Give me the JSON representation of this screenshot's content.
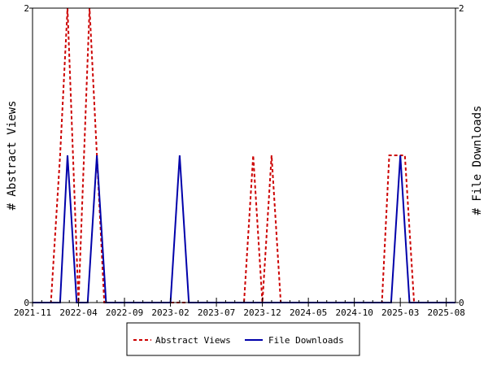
{
  "chart_data": {
    "type": "line",
    "x_tick_labels": [
      "2021-11",
      "2022-04",
      "2022-09",
      "2023-02",
      "2023-07",
      "2023-12",
      "2024-05",
      "2024-10",
      "2025-03",
      "2025-08"
    ],
    "x_tick_months": [
      0,
      5,
      10,
      15,
      20,
      25,
      30,
      35,
      40,
      45
    ],
    "x_range_months": [
      0,
      46
    ],
    "ylabel_left": "# Abstract Views",
    "ylabel_right": "# File Downloads",
    "ylim_left": [
      0,
      2
    ],
    "ylim_right": [
      0,
      2
    ],
    "y_ticks": [
      0,
      2
    ],
    "y_tick_labels": [
      "0",
      "2"
    ],
    "legend_position": "bottom",
    "series": [
      {
        "name": "Abstract Views",
        "color": "#cc0000",
        "style": "dashed",
        "axis": "left",
        "points": [
          [
            0,
            0
          ],
          [
            2,
            0
          ],
          [
            3,
            1
          ],
          [
            3.8,
            2
          ],
          [
            5,
            0
          ],
          [
            6.2,
            2
          ],
          [
            7.8,
            0
          ],
          [
            23,
            0
          ],
          [
            24,
            1
          ],
          [
            25,
            0
          ],
          [
            26,
            1
          ],
          [
            27,
            0
          ],
          [
            38,
            0
          ],
          [
            38.8,
            1
          ],
          [
            40.5,
            1
          ],
          [
            41.5,
            0
          ],
          [
            46,
            0
          ]
        ]
      },
      {
        "name": "File Downloads",
        "color": "#0000aa",
        "style": "solid",
        "axis": "right",
        "points": [
          [
            0,
            0
          ],
          [
            3,
            0
          ],
          [
            3.8,
            1
          ],
          [
            4.8,
            0
          ],
          [
            6,
            0
          ],
          [
            7,
            1
          ],
          [
            8,
            0
          ],
          [
            15,
            0
          ],
          [
            16,
            1
          ],
          [
            17,
            0
          ],
          [
            39,
            0
          ],
          [
            40,
            1
          ],
          [
            41,
            0
          ],
          [
            46,
            0
          ]
        ]
      }
    ]
  }
}
